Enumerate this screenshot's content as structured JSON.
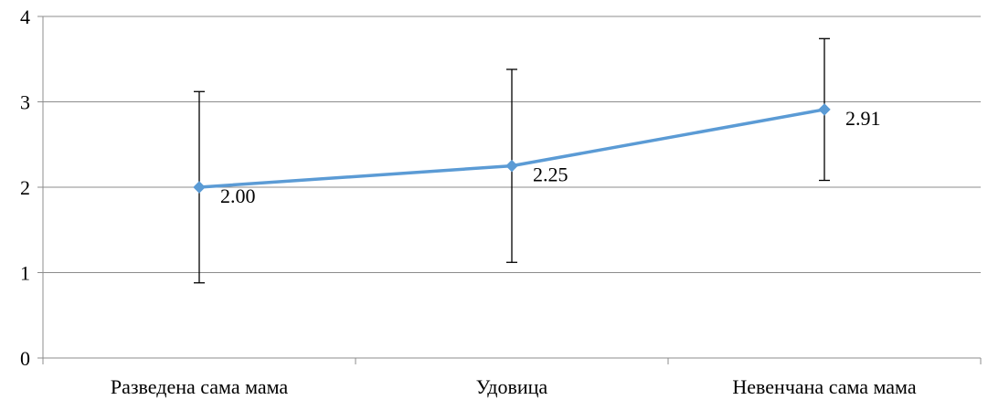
{
  "chart_data": {
    "type": "line",
    "categories": [
      "Разведена сама мама",
      "Удовица",
      "Невенчана сама мама"
    ],
    "series": [
      {
        "values": [
          2.0,
          2.25,
          2.91
        ],
        "data_labels": [
          "2.00",
          "2.25",
          "2.91"
        ],
        "error_low": [
          0.88,
          1.12,
          2.08
        ],
        "error_high": [
          3.12,
          3.38,
          3.74
        ],
        "color": "#5B9BD5"
      }
    ],
    "ylim": [
      0,
      4
    ],
    "yticks": [
      0,
      1,
      2,
      3,
      4
    ],
    "ytick_labels": [
      "0",
      "1",
      "2",
      "3",
      "4"
    ],
    "gridlines": "horizontal",
    "legend": "none",
    "colors": {
      "line": "#5B9BD5",
      "marker": "#5B9BD5",
      "error_bar": "#000000",
      "grid": "#8c8c8c",
      "axis": "#8c8c8c"
    }
  }
}
